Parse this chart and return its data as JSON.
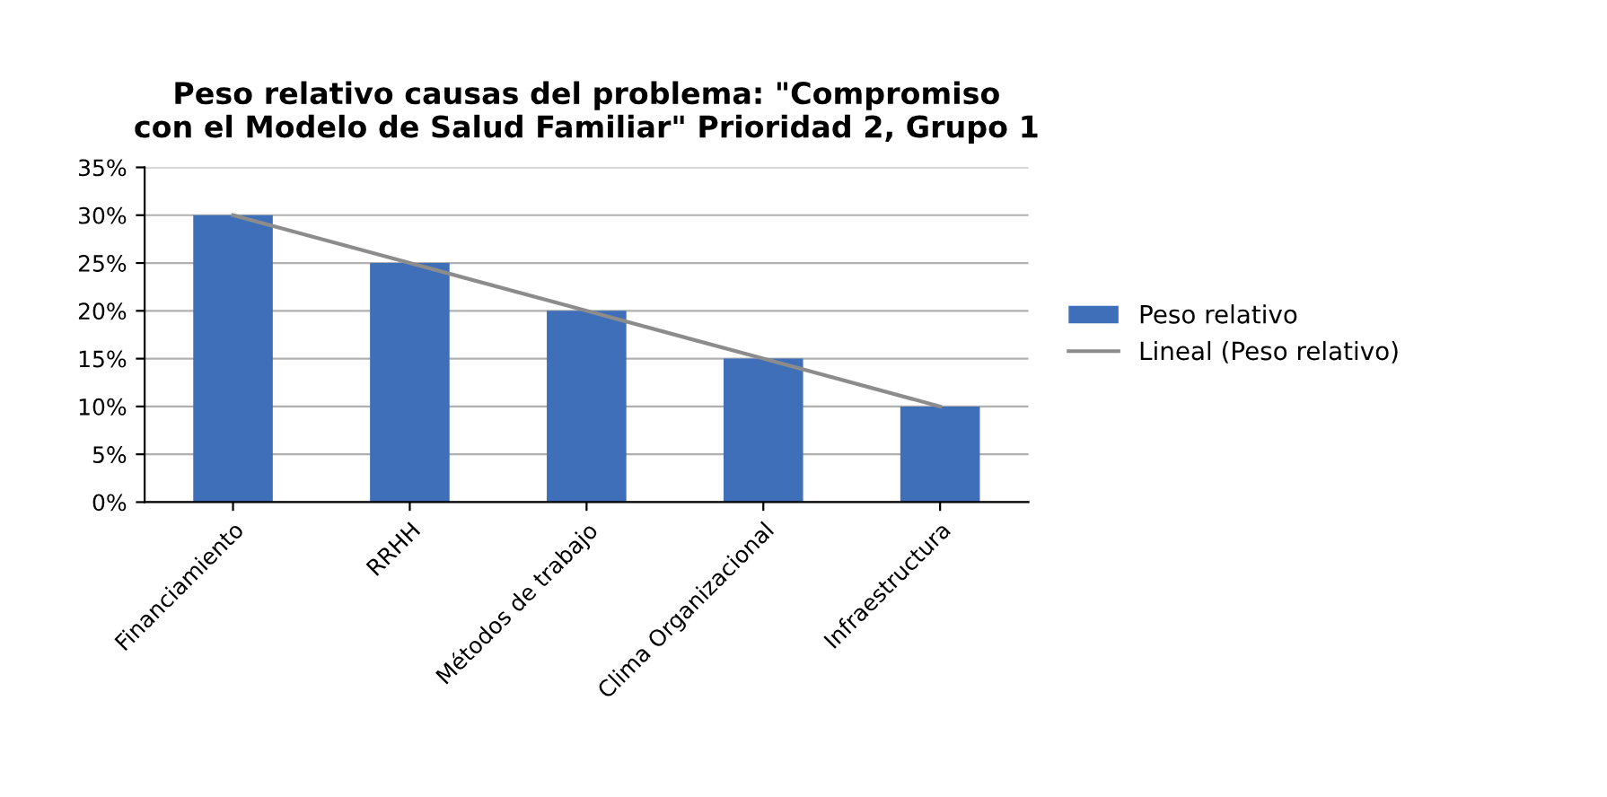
{
  "chart_data": {
    "type": "bar",
    "title": "Peso relativo causas del problema: \"Compromiso\ncon el Modelo de Salud Familiar\" Prioridad 2, Grupo 1",
    "categories": [
      "Financiamiento",
      "RRHH",
      "Métodos de trabajo",
      "Clima Organizacional",
      "Infraestructura"
    ],
    "series": [
      {
        "name": "Peso relativo",
        "color": "#3f6fb8",
        "values": [
          30,
          25,
          20,
          15,
          10
        ]
      },
      {
        "name": "Lineal (Peso relativo)",
        "type": "line",
        "color": "#8c8c8c",
        "x": [
          "Financiamiento",
          "RRHH",
          "Métodos de trabajo",
          "Clima Organizacional",
          "Infraestructura"
        ],
        "values": [
          30,
          25,
          20,
          15,
          10
        ]
      }
    ],
    "ylim": [
      0,
      35
    ],
    "yticks": [
      {
        "value": 0,
        "label": "0%"
      },
      {
        "value": 5,
        "label": "5%"
      },
      {
        "value": 10,
        "label": "10%"
      },
      {
        "value": 15,
        "label": "15%"
      },
      {
        "value": 20,
        "label": "20%"
      },
      {
        "value": 25,
        "label": "25%"
      },
      {
        "value": 30,
        "label": "30%"
      },
      {
        "value": 35,
        "label": "35%"
      }
    ],
    "grid": "y",
    "legend": "right"
  }
}
